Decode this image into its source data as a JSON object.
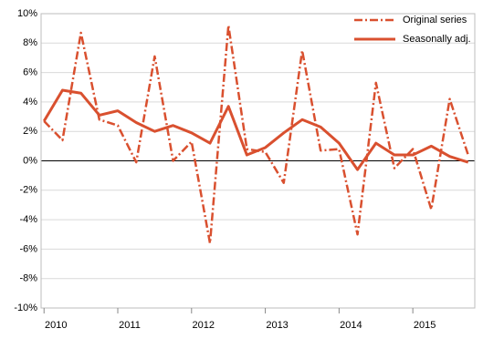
{
  "chart_data": {
    "type": "line",
    "x": [
      2010,
      2010.25,
      2010.5,
      2010.75,
      2011,
      2011.25,
      2011.5,
      2011.75,
      2012,
      2012.25,
      2012.5,
      2012.75,
      2013,
      2013.25,
      2013.5,
      2013.75,
      2014,
      2014.25,
      2014.5,
      2014.75,
      2015,
      2015.25,
      2015.5,
      2015.75
    ],
    "series": [
      {
        "name": "Original series",
        "color": "#d9502f",
        "linestyle": "dash-dot",
        "values": [
          2.7,
          1.4,
          8.7,
          2.8,
          2.4,
          -0.1,
          7.1,
          0.0,
          1.3,
          -5.6,
          9.2,
          0.8,
          0.6,
          -1.5,
          7.5,
          0.7,
          0.8,
          -5.0,
          5.3,
          -0.5,
          0.8,
          -3.3,
          4.2,
          0.4
        ]
      },
      {
        "name": "Seasonally adj.",
        "color": "#d9502f",
        "linestyle": "solid",
        "values": [
          2.7,
          4.8,
          4.6,
          3.1,
          3.4,
          2.6,
          2.0,
          2.4,
          1.9,
          1.2,
          3.7,
          0.4,
          0.9,
          1.9,
          2.8,
          2.3,
          1.2,
          -0.6,
          1.2,
          0.4,
          0.4,
          1.0,
          0.3,
          -0.1
        ]
      }
    ],
    "xlim": [
      2009.96,
      2015.84
    ],
    "xticks": [
      2010,
      2011,
      2012,
      2013,
      2014,
      2015
    ],
    "ylim": [
      -10,
      10
    ],
    "yticks": [
      {
        "value": -10,
        "label": "-10%"
      },
      {
        "value": -8,
        "label": "-8%"
      },
      {
        "value": -6,
        "label": "-6%"
      },
      {
        "value": -4,
        "label": "-4%"
      },
      {
        "value": -2,
        "label": "-2%"
      },
      {
        "value": 0,
        "label": "0%"
      },
      {
        "value": 2,
        "label": "2%"
      },
      {
        "value": 4,
        "label": "4%"
      },
      {
        "value": 6,
        "label": "6%"
      },
      {
        "value": 8,
        "label": "8%"
      },
      {
        "value": 10,
        "label": "10%"
      }
    ],
    "grid": true,
    "legend": "top-right"
  }
}
